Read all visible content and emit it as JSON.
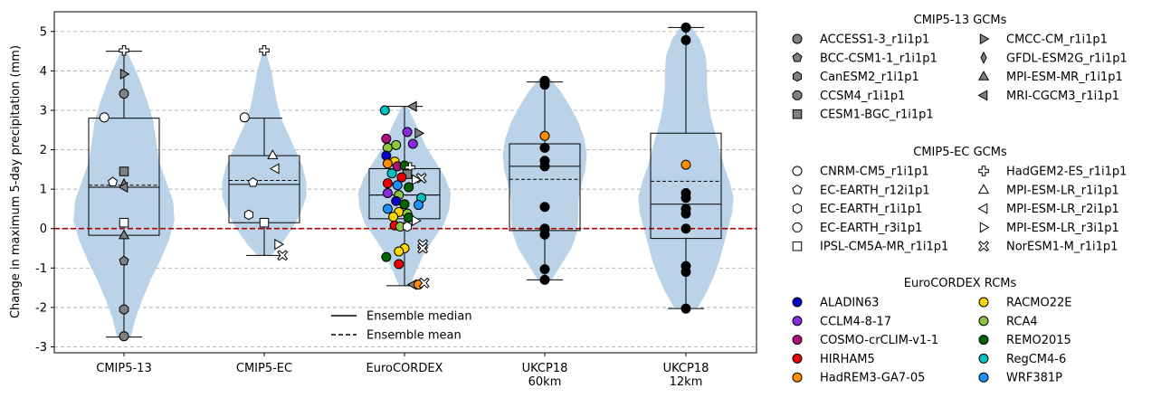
{
  "chart_data": {
    "type": "violin-box-scatter",
    "ylabel": "Change in maximum 5-day precipitation (mm)",
    "ylim": [
      -3.15,
      5.5
    ],
    "yticks": [
      -3,
      -2,
      -1,
      0,
      1,
      2,
      3,
      4,
      5
    ],
    "grid": "horizontal-dashed",
    "reference_line": {
      "y": 0,
      "color": "#b30000",
      "style": "dashed"
    },
    "categories": [
      {
        "label": [
          "CMIP5-13"
        ]
      },
      {
        "label": [
          "CMIP5-EC"
        ]
      },
      {
        "label": [
          "EuroCORDEX"
        ]
      },
      {
        "label": [
          "UKCP18",
          "60km"
        ]
      },
      {
        "label": [
          "UKCP18",
          "12km"
        ]
      }
    ],
    "groups": [
      {
        "name": "CMIP5-13",
        "box": {
          "q1": -0.17,
          "median": 1.05,
          "q3": 2.8,
          "whisker_low": -2.75,
          "whisker_high": 4.5
        },
        "mean": 1.1,
        "violin": {
          "ys": [
            -2.75,
            -2.3,
            -1.8,
            -1.3,
            -0.8,
            -0.3,
            0.2,
            0.7,
            1.2,
            1.7,
            2.2,
            2.7,
            3.2,
            3.7,
            4.2,
            4.5
          ],
          "ws": [
            0.05,
            0.08,
            0.13,
            0.19,
            0.26,
            0.32,
            0.36,
            0.35,
            0.3,
            0.25,
            0.23,
            0.21,
            0.17,
            0.12,
            0.06,
            0.02
          ]
        },
        "points": [
          {
            "model": "HadGEM2-ES_r1i1p1",
            "y": 4.52,
            "dx": 0
          },
          {
            "model": "CMCC-CM_r1i1p1",
            "y": 3.92,
            "dx": 0
          },
          {
            "model": "ACCESS1-3_r1i1p1",
            "y": 3.42,
            "dx": 0
          },
          {
            "model": "CNRM-CM5_r1i1p1",
            "y": 2.82,
            "dx": -0.14
          },
          {
            "model": "CESM1-BGC_r1i1p1",
            "y": 1.45,
            "dx": 0
          },
          {
            "model": "EC-EARTH_r12i1p1",
            "y": 1.18,
            "dx": -0.08
          },
          {
            "model": "GFDL-ESM2G_r1i1p1",
            "y": 1.12,
            "dx": 0
          },
          {
            "model": "MRI-CGCM3_r1i1p1",
            "y": 1.05,
            "dx": 0
          },
          {
            "model": "IPSL-CM5A-MR_r1i1p1",
            "y": 0.15,
            "dx": 0
          },
          {
            "model": "MPI-ESM-MR_r1i1p1",
            "y": -0.17,
            "dx": 0
          },
          {
            "model": "BCC-CSM1-1_r1i1p1",
            "y": -0.82,
            "dx": 0
          },
          {
            "model": "CCSM4_r1i1p1",
            "y": -2.05,
            "dx": 0
          },
          {
            "model": "ACCESS1-3_r1i1p1",
            "y": -2.73,
            "dx": 0
          }
        ]
      },
      {
        "name": "CMIP5-EC",
        "box": {
          "q1": 0.15,
          "median": 1.12,
          "q3": 1.85,
          "whisker_low": -0.68,
          "whisker_high": 2.8
        },
        "mean": 1.22,
        "violin": {
          "ys": [
            -0.68,
            -0.4,
            0.0,
            0.4,
            0.8,
            1.2,
            1.6,
            2.0,
            2.4,
            2.8,
            3.2,
            3.6,
            4.0,
            4.5
          ],
          "ws": [
            0.05,
            0.12,
            0.2,
            0.26,
            0.3,
            0.3,
            0.27,
            0.22,
            0.17,
            0.12,
            0.09,
            0.07,
            0.05,
            0.01
          ]
        },
        "points": [
          {
            "model": "HadGEM2-ES_r1i1p1",
            "y": 4.52,
            "dx": 0
          },
          {
            "model": "CNRM-CM5_r1i1p1",
            "y": 2.82,
            "dx": -0.14
          },
          {
            "model": "MPI-ESM-LR_r1i1p1",
            "y": 1.86,
            "dx": 0.06
          },
          {
            "model": "MPI-ESM-LR_r2i1p1",
            "y": 1.52,
            "dx": 0.08
          },
          {
            "model": "EC-EARTH_r12i1p1",
            "y": 1.17,
            "dx": -0.08
          },
          {
            "model": "EC-EARTH_r1i1p1",
            "y": 0.35,
            "dx": -0.11
          },
          {
            "model": "IPSL-CM5A-MR_r1i1p1",
            "y": 0.15,
            "dx": 0
          },
          {
            "model": "MPI-ESM-LR_r3i1p1",
            "y": -0.4,
            "dx": 0.1
          },
          {
            "model": "NorESM1-M_r1i1p1",
            "y": -0.68,
            "dx": 0.13
          }
        ]
      },
      {
        "name": "EuroCORDEX",
        "box": {
          "q1": 0.25,
          "median": 0.85,
          "q3": 1.52,
          "whisker_low": -1.45,
          "whisker_high": 3.1
        },
        "mean": 0.85,
        "violin": {
          "ys": [
            -1.45,
            -1.1,
            -0.7,
            -0.3,
            0.1,
            0.5,
            0.9,
            1.3,
            1.7,
            2.1,
            2.5,
            2.8,
            3.1
          ],
          "ws": [
            0.04,
            0.08,
            0.13,
            0.2,
            0.28,
            0.32,
            0.33,
            0.29,
            0.22,
            0.15,
            0.1,
            0.06,
            0.02
          ]
        },
        "points": [
          {
            "model": "MRI-CGCM3_r1i1p1",
            "y": 3.1,
            "dx": 0.06
          },
          {
            "model": "RegCM4-6",
            "y": 3.0,
            "dx": -0.14
          },
          {
            "model": "CCLM4-8-17",
            "y": 2.45,
            "dx": 0.02
          },
          {
            "model": "CMCC-CM_r1i1p1",
            "y": 2.42,
            "dx": 0.1
          },
          {
            "model": "COSMO-crCLIM-v1-1",
            "y": 2.28,
            "dx": -0.13
          },
          {
            "model": "CCLM4-8-17",
            "y": 2.15,
            "dx": 0.06
          },
          {
            "model": "RCA4",
            "y": 2.05,
            "dx": -0.12
          },
          {
            "model": "RCA4",
            "y": 2.12,
            "dx": -0.06
          },
          {
            "model": "ALADIN63",
            "y": 1.85,
            "dx": -0.13
          },
          {
            "model": "RACMO22E",
            "y": 1.7,
            "dx": -0.07
          },
          {
            "model": "HadREM3-GA7-05",
            "y": 1.65,
            "dx": -0.12
          },
          {
            "model": "COSMO-crCLIM-v1-1",
            "y": 1.58,
            "dx": -0.05
          },
          {
            "model": "REMO2015",
            "y": 1.6,
            "dx": 0.0
          },
          {
            "model": "HadGEM2-ES_r1i1p1",
            "y": 1.55,
            "dx": 0.04
          },
          {
            "model": "RegCM4-6",
            "y": 1.4,
            "dx": -0.09
          },
          {
            "model": "CESM1-BGC_r1i1p1",
            "y": 1.38,
            "dx": 0.02
          },
          {
            "model": "HIRHAM5",
            "y": 1.3,
            "dx": -0.02
          },
          {
            "model": "NorESM1-M_r1i1p1",
            "y": 1.28,
            "dx": 0.12
          },
          {
            "model": "MPI-ESM-LR_r3i1p1",
            "y": 1.24,
            "dx": 0.08
          },
          {
            "model": "HIRHAM5",
            "y": 1.15,
            "dx": -0.12
          },
          {
            "model": "WRF381P",
            "y": 1.1,
            "dx": -0.05
          },
          {
            "model": "REMO2015",
            "y": 1.05,
            "dx": 0.03
          },
          {
            "model": "CCLM4-8-17",
            "y": 0.9,
            "dx": -0.12
          },
          {
            "model": "RCA4",
            "y": 0.85,
            "dx": -0.04
          },
          {
            "model": "RegCM4-6",
            "y": 0.78,
            "dx": 0.12
          },
          {
            "model": "ALADIN63",
            "y": 0.7,
            "dx": -0.06
          },
          {
            "model": "WRF381P",
            "y": 0.6,
            "dx": 0.1
          },
          {
            "model": "REMO2015",
            "y": 0.62,
            "dx": 0.0
          },
          {
            "model": "WRF381P",
            "y": 0.5,
            "dx": -0.12
          },
          {
            "model": "RACMO22E",
            "y": 0.42,
            "dx": -0.04
          },
          {
            "model": "RCA4",
            "y": 0.38,
            "dx": 0.02
          },
          {
            "model": "REMO2015",
            "y": 0.28,
            "dx": 0.03
          },
          {
            "model": "RACMO22E",
            "y": 0.3,
            "dx": -0.08
          },
          {
            "model": "MPI-ESM-LR_r3i1p1",
            "y": 0.2,
            "dx": 0.08
          },
          {
            "model": "HIRHAM5",
            "y": 0.08,
            "dx": -0.07
          },
          {
            "model": "RCA4",
            "y": 0.05,
            "dx": -0.03
          },
          {
            "model": "EC-EARTH_r1i1p1",
            "y": 0.05,
            "dx": 0.02
          },
          {
            "model": "NorESM1-M_r1i1p1",
            "y": -0.4,
            "dx": 0.13
          },
          {
            "model": "RACMO22E",
            "y": -0.5,
            "dx": 0.0
          },
          {
            "model": "NorESM1-M_r1i1p1",
            "y": -0.5,
            "dx": 0.13
          },
          {
            "model": "RACMO22E",
            "y": -0.58,
            "dx": -0.04
          },
          {
            "model": "REMO2015",
            "y": -0.72,
            "dx": -0.13
          },
          {
            "model": "HIRHAM5",
            "y": -0.9,
            "dx": -0.04
          },
          {
            "model": "MRI-CGCM3_r1i1p1",
            "y": -1.42,
            "dx": 0.06
          },
          {
            "model": "HadREM3-GA7-05",
            "y": -1.42,
            "dx": 0.1
          },
          {
            "model": "NorESM1-M_r1i1p1",
            "y": -1.38,
            "dx": 0.14
          }
        ]
      },
      {
        "name": "UKCP18 60km",
        "box": {
          "q1": -0.05,
          "median": 1.58,
          "q3": 2.15,
          "whisker_low": -1.3,
          "whisker_high": 3.72
        },
        "mean": 1.25,
        "violin": {
          "ys": [
            -1.3,
            -0.9,
            -0.5,
            -0.1,
            0.3,
            0.7,
            1.1,
            1.5,
            1.9,
            2.3,
            2.7,
            3.1,
            3.5,
            3.8
          ],
          "ws": [
            0.05,
            0.12,
            0.19,
            0.23,
            0.24,
            0.24,
            0.26,
            0.29,
            0.3,
            0.28,
            0.24,
            0.18,
            0.11,
            0.04
          ]
        },
        "points": [
          {
            "model": "UKCP18",
            "y": 3.75,
            "dx": 0
          },
          {
            "model": "UKCP18",
            "y": 3.65,
            "dx": 0
          },
          {
            "model": "HadREM3-GA7-05",
            "y": 2.35,
            "dx": 0
          },
          {
            "model": "UKCP18",
            "y": 2.05,
            "dx": 0
          },
          {
            "model": "UKCP18",
            "y": 1.72,
            "dx": 0
          },
          {
            "model": "UKCP18",
            "y": 1.58,
            "dx": 0
          },
          {
            "model": "UKCP18",
            "y": 0.55,
            "dx": 0
          },
          {
            "model": "UKCP18",
            "y": 0.0,
            "dx": 0
          },
          {
            "model": "UKCP18",
            "y": -0.15,
            "dx": 0
          },
          {
            "model": "UKCP18",
            "y": -1.03,
            "dx": 0
          },
          {
            "model": "UKCP18",
            "y": -1.3,
            "dx": 0
          }
        ]
      },
      {
        "name": "UKCP18 12km",
        "box": {
          "q1": -0.25,
          "median": 0.62,
          "q3": 2.42,
          "whisker_low": -2.03,
          "whisker_high": 5.1
        },
        "mean": 1.2,
        "violin": {
          "ys": [
            -2.03,
            -1.6,
            -1.2,
            -0.8,
            -0.4,
            0.0,
            0.4,
            0.8,
            1.2,
            1.6,
            2.0,
            2.4,
            2.8,
            3.2,
            3.6,
            4.0,
            4.4,
            4.8,
            5.1
          ],
          "ws": [
            0.08,
            0.15,
            0.2,
            0.24,
            0.27,
            0.3,
            0.33,
            0.34,
            0.31,
            0.27,
            0.24,
            0.21,
            0.18,
            0.16,
            0.15,
            0.15,
            0.14,
            0.1,
            0.04
          ]
        },
        "points": [
          {
            "model": "UKCP18",
            "y": 5.1,
            "dx": 0
          },
          {
            "model": "UKCP18",
            "y": 4.78,
            "dx": 0
          },
          {
            "model": "HadREM3-GA7-05",
            "y": 1.62,
            "dx": 0
          },
          {
            "model": "UKCP18",
            "y": 0.9,
            "dx": 0
          },
          {
            "model": "UKCP18",
            "y": 0.78,
            "dx": 0
          },
          {
            "model": "UKCP18",
            "y": 0.5,
            "dx": 0
          },
          {
            "model": "UKCP18",
            "y": 0.38,
            "dx": 0
          },
          {
            "model": "UKCP18",
            "y": 0.0,
            "dx": 0
          },
          {
            "model": "UKCP18",
            "y": -0.95,
            "dx": 0
          },
          {
            "model": "UKCP18",
            "y": -1.1,
            "dx": 0
          },
          {
            "model": "UKCP18",
            "y": -2.03,
            "dx": 0
          }
        ]
      }
    ],
    "stat_legend": [
      {
        "label": "Ensemble median",
        "style": "solid"
      },
      {
        "label": "Ensemble mean",
        "style": "dashed"
      }
    ],
    "legend_sections": [
      {
        "title": "CMIP5-13 GCMs",
        "items": [
          {
            "label": "ACCESS1-3_r1i1p1",
            "marker": "circle",
            "color": "#808080"
          },
          {
            "label": "BCC-CSM1-1_r1i1p1",
            "marker": "pentagon",
            "color": "#808080"
          },
          {
            "label": "CanESM2_r1i1p1",
            "marker": "hexagon",
            "color": "#808080"
          },
          {
            "label": "CCSM4_r1i1p1",
            "marker": "octagon",
            "color": "#808080"
          },
          {
            "label": "CESM1-BGC_r1i1p1",
            "marker": "square",
            "color": "#808080"
          },
          {
            "label": "CMCC-CM_r1i1p1",
            "marker": "tri-right",
            "color": "#808080"
          },
          {
            "label": "GFDL-ESM2G_r1i1p1",
            "marker": "thin-diamond",
            "color": "#808080"
          },
          {
            "label": "MPI-ESM-MR_r1i1p1",
            "marker": "tri-up",
            "color": "#808080"
          },
          {
            "label": "MRI-CGCM3_r1i1p1",
            "marker": "tri-left",
            "color": "#808080"
          }
        ]
      },
      {
        "title": "CMIP5-EC GCMs",
        "items": [
          {
            "label": "CNRM-CM5_r1i1p1",
            "marker": "circle",
            "color": "#ffffff"
          },
          {
            "label": "EC-EARTH_r12i1p1",
            "marker": "pentagon",
            "color": "#ffffff"
          },
          {
            "label": "EC-EARTH_r1i1p1",
            "marker": "hexagon",
            "color": "#ffffff"
          },
          {
            "label": "EC-EARTH_r3i1p1",
            "marker": "octagon",
            "color": "#ffffff"
          },
          {
            "label": "IPSL-CM5A-MR_r1i1p1",
            "marker": "square",
            "color": "#ffffff"
          },
          {
            "label": "HadGEM2-ES_r1i1p1",
            "marker": "plus",
            "color": "#ffffff"
          },
          {
            "label": "MPI-ESM-LR_r1i1p1",
            "marker": "tri-up",
            "color": "#ffffff"
          },
          {
            "label": "MPI-ESM-LR_r2i1p1",
            "marker": "tri-left",
            "color": "#ffffff"
          },
          {
            "label": "MPI-ESM-LR_r3i1p1",
            "marker": "tri-right",
            "color": "#ffffff"
          },
          {
            "label": "NorESM1-M_r1i1p1",
            "marker": "x",
            "color": "#ffffff"
          }
        ]
      },
      {
        "title": "EuroCORDEX RCMs",
        "items": [
          {
            "label": "ALADIN63",
            "marker": "circle",
            "color": "#0000cc"
          },
          {
            "label": "CCLM4-8-17",
            "marker": "circle",
            "color": "#8a2be2"
          },
          {
            "label": "COSMO-crCLIM-v1-1",
            "marker": "circle",
            "color": "#b0127d"
          },
          {
            "label": "HIRHAM5",
            "marker": "circle",
            "color": "#ee0000"
          },
          {
            "label": "HadREM3-GA7-05",
            "marker": "circle",
            "color": "#ff8c00"
          },
          {
            "label": "RACMO22E",
            "marker": "circle",
            "color": "#ffd700"
          },
          {
            "label": "RCA4",
            "marker": "circle",
            "color": "#8cc63f"
          },
          {
            "label": "REMO2015",
            "marker": "circle",
            "color": "#006400"
          },
          {
            "label": "RegCM4-6",
            "marker": "circle",
            "color": "#00c0c0"
          },
          {
            "label": "WRF381P",
            "marker": "circle",
            "color": "#1e90ff"
          }
        ]
      }
    ]
  }
}
